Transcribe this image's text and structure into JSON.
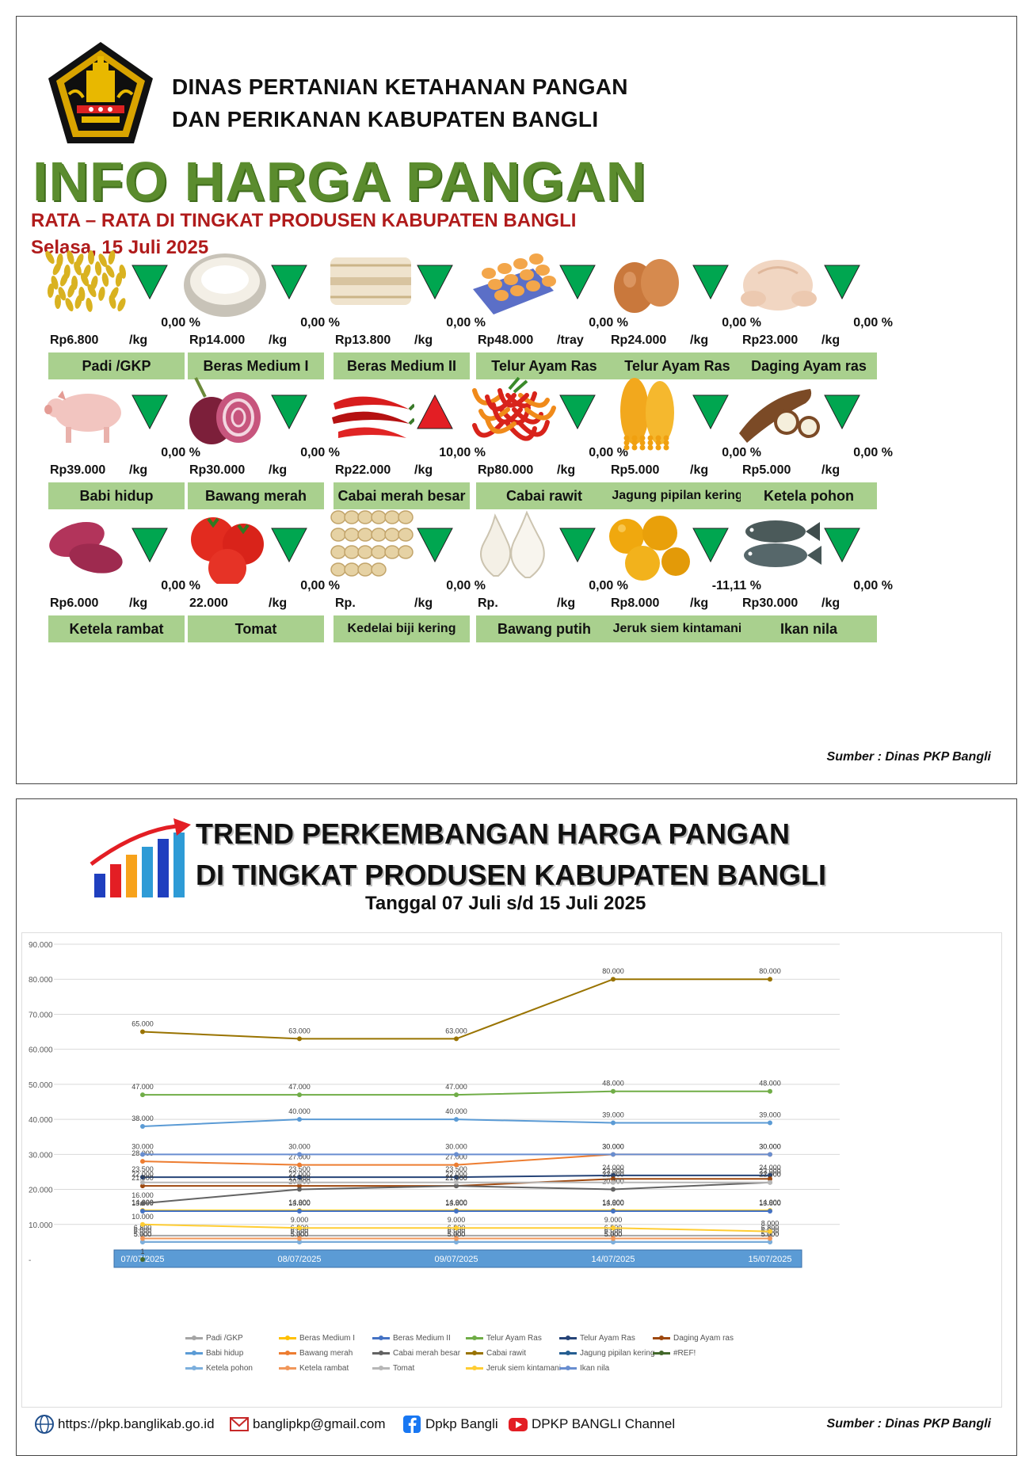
{
  "header": {
    "org_line1": "DINAS PERTANIAN KETAHANAN PANGAN",
    "org_line2": "DAN PERIKANAN KABUPATEN BANGLI",
    "title": "INFO HARGA PANGAN",
    "subtitle": "RATA – RATA DI TINGKAT PRODUSEN KABUPATEN BANGLI",
    "date": "Selasa, 15 Juli 2025"
  },
  "colors": {
    "label_bg": "#a9d08e",
    "down": "#00a650",
    "up": "#e31e24",
    "title_green": "#5b8c2e",
    "subtitle_red": "#b01b1b"
  },
  "commodities": [
    {
      "name": "Padi /GKP",
      "price": "Rp6.800",
      "unit": "/kg",
      "pct": "0,00  %",
      "trend": "down",
      "icon": "rice-grain-icon"
    },
    {
      "name": "Beras Medium I",
      "price": "Rp14.000",
      "unit": "/kg",
      "pct": "0,00  %",
      "trend": "down",
      "icon": "rice-icon"
    },
    {
      "name": "Beras Medium II",
      "price": "Rp13.800",
      "unit": "/kg",
      "pct": "0,00  %",
      "trend": "down",
      "icon": "rice-sack-icon"
    },
    {
      "name": "Telur Ayam Ras",
      "price": "Rp48.000",
      "unit": "/tray",
      "pct": "0,00  %",
      "trend": "down",
      "icon": "egg-tray-icon"
    },
    {
      "name": "Telur Ayam Ras",
      "price": "Rp24.000",
      "unit": "/kg",
      "pct": "0,00  %",
      "trend": "down",
      "icon": "eggs-icon"
    },
    {
      "name": "Daging Ayam ras",
      "price": "Rp23.000",
      "unit": "/kg",
      "pct": "0,00  %",
      "trend": "down",
      "icon": "chicken-meat-icon"
    },
    {
      "name": "Babi hidup",
      "price": "Rp39.000",
      "unit": "/kg",
      "pct": "0,00  %",
      "trend": "down",
      "icon": "pig-icon"
    },
    {
      "name": "Bawang merah",
      "price": "Rp30.000",
      "unit": "/kg",
      "pct": "0,00  %",
      "trend": "down",
      "icon": "shallot-icon"
    },
    {
      "name": "Cabai merah besar",
      "price": "Rp22.000",
      "unit": "/kg",
      "pct": "10,00  %",
      "trend": "up",
      "icon": "red-chili-icon"
    },
    {
      "name": "Cabai rawit",
      "price": "Rp80.000",
      "unit": "/kg",
      "pct": "0,00  %",
      "trend": "down",
      "icon": "bird-chili-icon"
    },
    {
      "name": "Jagung pipilan kering",
      "price": "Rp5.000",
      "unit": "/kg",
      "pct": "0,00  %",
      "trend": "down",
      "icon": "corn-icon"
    },
    {
      "name": "Ketela pohon",
      "price": "Rp5.000",
      "unit": "/kg",
      "pct": "0,00  %",
      "trend": "down",
      "icon": "cassava-icon"
    },
    {
      "name": "Ketela rambat",
      "price": "Rp6.000",
      "unit": "/kg",
      "pct": "0,00  %",
      "trend": "down",
      "icon": "sweet-potato-icon"
    },
    {
      "name": "Tomat",
      "price": "22.000",
      "unit": "/kg",
      "pct": "0,00  %",
      "trend": "down",
      "icon": "tomato-icon"
    },
    {
      "name": "Kedelai biji kering",
      "price": "Rp.",
      "unit": "/kg",
      "pct": "0,00  %",
      "trend": "down",
      "icon": "soybean-icon"
    },
    {
      "name": "Bawang putih",
      "price": "Rp.",
      "unit": "/kg",
      "pct": "0,00  %",
      "trend": "down",
      "icon": "garlic-icon"
    },
    {
      "name": "Jeruk siem kintamani",
      "price": "Rp8.000",
      "unit": "/kg",
      "pct": "-11,11  %",
      "trend": "down",
      "icon": "orange-icon"
    },
    {
      "name": "Ikan nila",
      "price": "Rp30.000",
      "unit": "/kg",
      "pct": "0,00  %",
      "trend": "down",
      "icon": "fish-icon"
    }
  ],
  "source": "Sumber : Dinas PKP Bangli",
  "trend": {
    "title_line1": "TREND PERKEMBANGAN HARGA PANGAN",
    "title_line2": "DI TINGKAT PRODUSEN KABUPATEN BANGLI",
    "range": "Tanggal 07 Juli s/d 15 Juli 2025"
  },
  "chart_data": {
    "type": "line",
    "x": [
      "07/07/2025",
      "08/07/2025",
      "09/07/2025",
      "14/07/2025",
      "15/07/2025"
    ],
    "ylim": [
      0,
      90000
    ],
    "yticks": [
      "-",
      "10.000",
      "20.000",
      "30.000",
      "40.000",
      "50.000",
      "60.000",
      "70.000",
      "80.000",
      "90.000"
    ],
    "grid": true,
    "legend_position": "bottom",
    "series": [
      {
        "name": "Padi /GKP",
        "color": "#a5a5a5",
        "values": [
          6800,
          6800,
          6800,
          6800,
          6800
        ],
        "labels": [
          "6.800",
          "6.800",
          "6.800",
          "6.800",
          "6.800"
        ]
      },
      {
        "name": "Beras Medium I",
        "color": "#ffc000",
        "values": [
          14000,
          14000,
          14000,
          14000,
          14000
        ],
        "labels": [
          "14.000",
          "14.000",
          "14.000",
          "14.000",
          "14.000"
        ]
      },
      {
        "name": "Beras Medium II",
        "color": "#4472c4",
        "values": [
          13800,
          13800,
          13800,
          13800,
          13800
        ],
        "labels": [
          "13.800",
          "13.800",
          "13.800",
          "13.800",
          "13.800"
        ]
      },
      {
        "name": "Telur Ayam Ras",
        "color": "#70ad47",
        "values": [
          47000,
          47000,
          47000,
          48000,
          48000
        ],
        "labels": [
          "47.000",
          "47.000",
          "47.000",
          "48.000",
          "48.000"
        ]
      },
      {
        "name": "Telur Ayam Ras",
        "color": "#264478",
        "values": [
          23500,
          23500,
          23500,
          24000,
          24000
        ],
        "labels": [
          "23.500",
          "23.500",
          "23.500",
          "24.000",
          "24.000"
        ]
      },
      {
        "name": "Daging Ayam ras",
        "color": "#9e480e",
        "values": [
          21000,
          21000,
          21000,
          23000,
          23000
        ],
        "labels": [
          "21.000",
          "21.000",
          "21.000",
          "23.000",
          "23.000"
        ]
      },
      {
        "name": "Babi hidup",
        "color": "#5b9bd5",
        "values": [
          38000,
          40000,
          40000,
          39000,
          39000
        ],
        "labels": [
          "38.000",
          "40.000",
          "40.000",
          "39.000",
          "39.000"
        ]
      },
      {
        "name": "Bawang merah",
        "color": "#ed7d31",
        "values": [
          28000,
          27000,
          27000,
          30000,
          30000
        ],
        "labels": [
          "28.000",
          "27.000",
          "27.000",
          "30.000",
          "30.000"
        ]
      },
      {
        "name": "Cabai merah besar",
        "color": "#636363",
        "values": [
          16000,
          20000,
          21000,
          20000,
          22000
        ],
        "labels": [
          "16.000",
          "20.000",
          "21.000",
          "20.000",
          "22.000"
        ]
      },
      {
        "name": "Cabai rawit",
        "color": "#997300",
        "values": [
          65000,
          63000,
          63000,
          80000,
          80000
        ],
        "labels": [
          "65.000",
          "63.000",
          "63.000",
          "80.000",
          "80.000"
        ]
      },
      {
        "name": "Jagung pipilan kering",
        "color": "#255e91",
        "values": [
          5000,
          5000,
          5000,
          5000,
          5000
        ],
        "labels": [
          "5.000",
          "5.000",
          "5.000",
          "5.000",
          "5.000"
        ]
      },
      {
        "name": "#REF!",
        "color": "#43682b",
        "values": [
          1,
          null,
          null,
          null,
          null
        ],
        "labels": [
          "1",
          "",
          "",
          "",
          ""
        ]
      },
      {
        "name": "Ketela pohon",
        "color": "#7cafdd",
        "values": [
          5000,
          5000,
          5000,
          5000,
          5000
        ],
        "labels": [
          "5.000",
          "5.000",
          "5.000",
          "5.000",
          "5.000"
        ]
      },
      {
        "name": "Ketela rambat",
        "color": "#f1975a",
        "values": [
          6000,
          6000,
          6000,
          6000,
          6000
        ],
        "labels": [
          "6.000",
          "6.000",
          "6.000",
          "6.000",
          "6.000"
        ]
      },
      {
        "name": "Tomat",
        "color": "#b7b7b7",
        "values": [
          22000,
          22000,
          22000,
          22000,
          22000
        ],
        "labels": [
          "22.000",
          "22.000",
          "22.000",
          "22.000",
          "22.000"
        ]
      },
      {
        "name": "Jeruk siem kintamani",
        "color": "#ffcd33",
        "values": [
          10000,
          9000,
          9000,
          9000,
          8000
        ],
        "labels": [
          "10.000",
          "9.000",
          "9.000",
          "9.000",
          "8.000"
        ]
      },
      {
        "name": "Ikan nila",
        "color": "#698ed0",
        "values": [
          30000,
          30000,
          30000,
          30000,
          30000
        ],
        "labels": [
          "30.000",
          "30.000",
          "30.000",
          "30.000",
          "30.000"
        ]
      }
    ]
  },
  "footer": {
    "website": "https://pkp.banglikab.go.id",
    "email": "banglipkp@gmail.com",
    "facebook": "Dpkp Bangli",
    "youtube": "DPKP BANGLI Channel"
  }
}
